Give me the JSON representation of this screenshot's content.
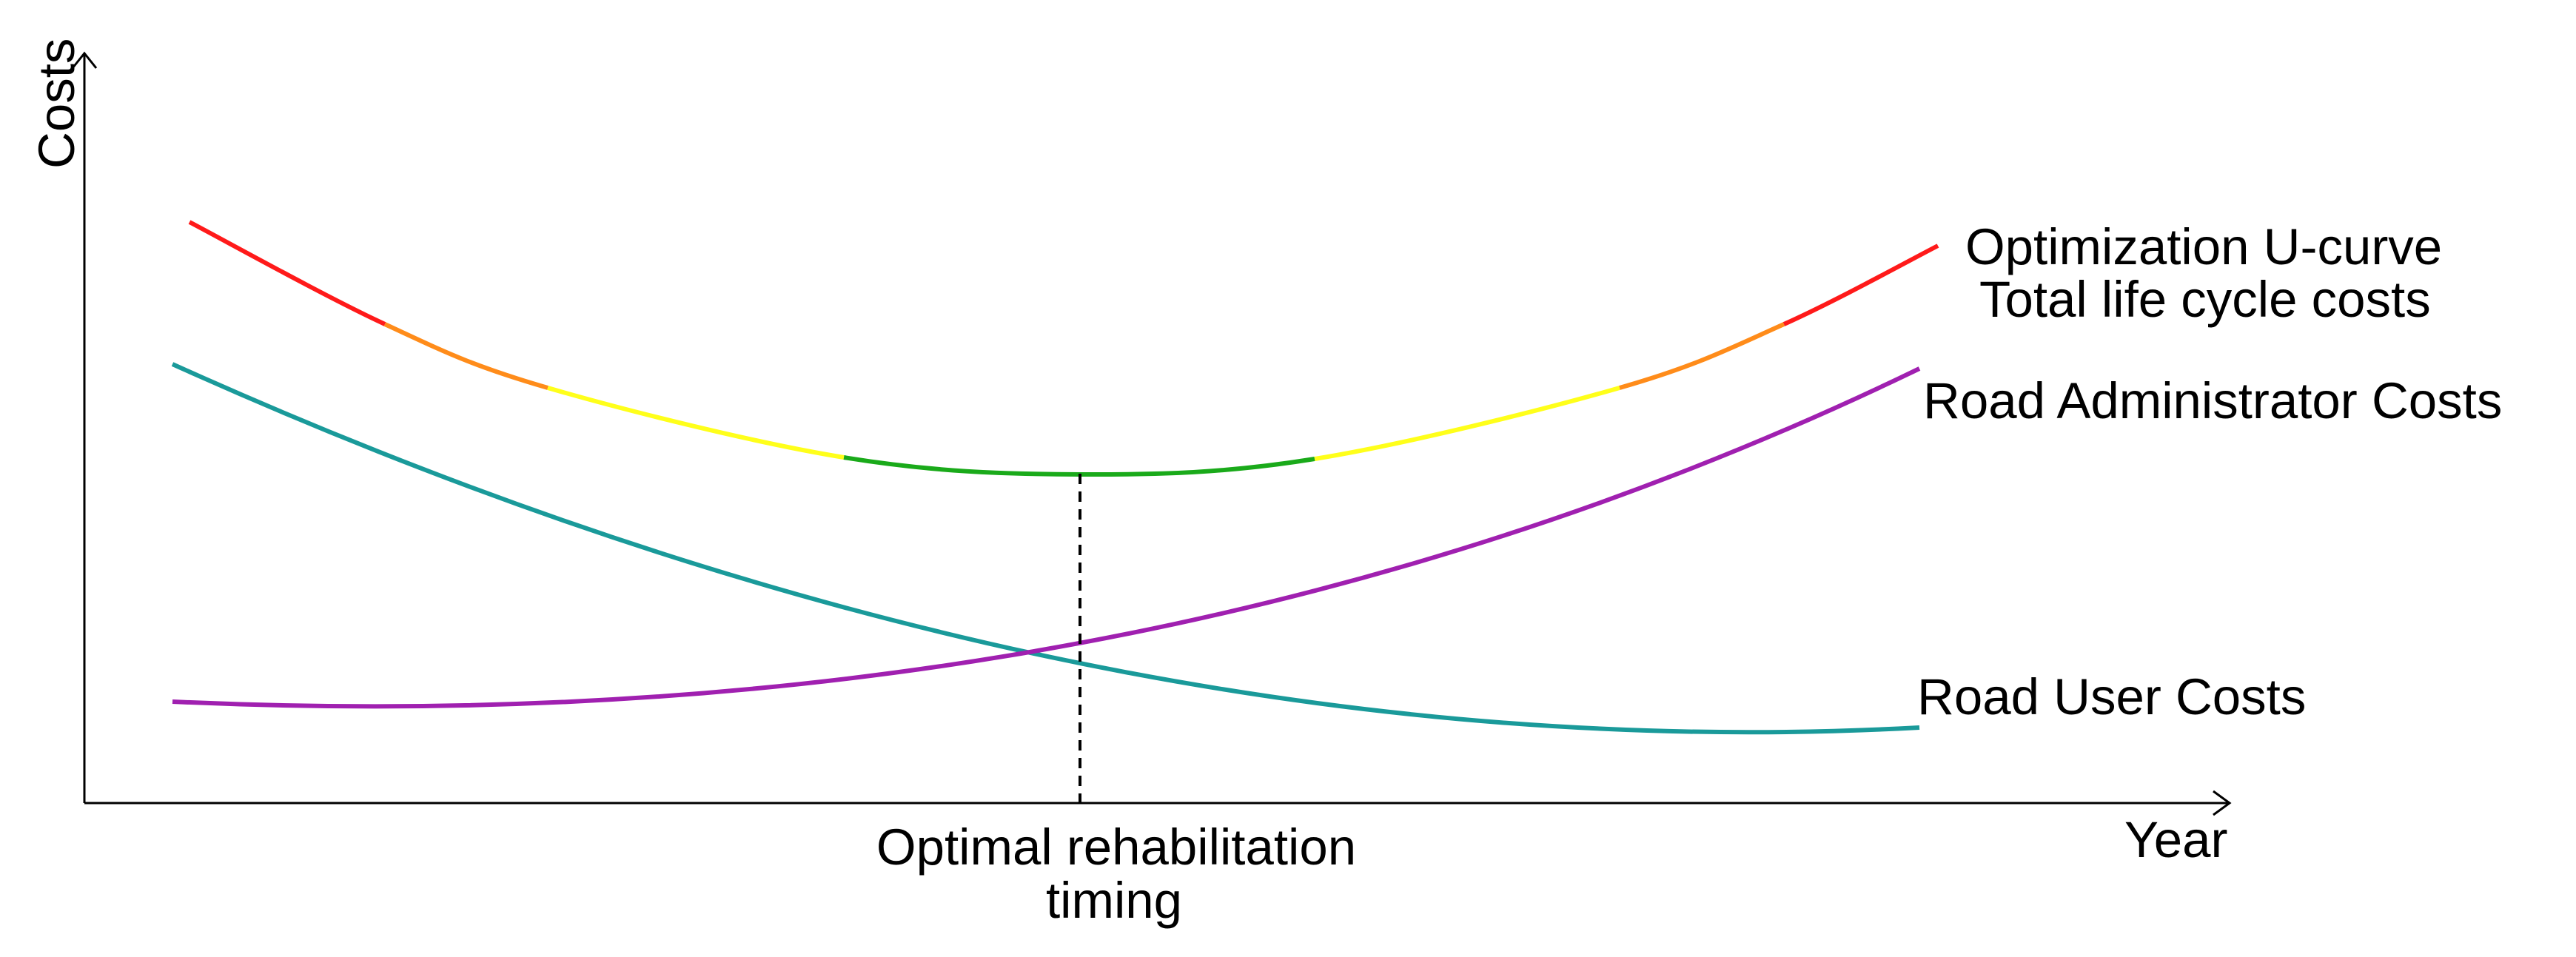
{
  "axes": {
    "y_label": "Costs",
    "x_label": "Year"
  },
  "curves": {
    "total": {
      "label_line1": "Optimization U-curve",
      "label_line2": "Total life cycle costs",
      "segment_colors": [
        "#ff1a1a",
        "#ff8c1a",
        "#ffff1a",
        "#1aaa1a",
        "#ffff1a",
        "#ff8c1a",
        "#ff1a1a"
      ]
    },
    "admin": {
      "label": "Road Administrator Costs",
      "color": "#a020b0"
    },
    "user": {
      "label": "Road User Costs",
      "color": "#1a9a9a"
    }
  },
  "optimum": {
    "label_line1": "Optimal rehabilitation",
    "label_line2": "timing"
  }
}
